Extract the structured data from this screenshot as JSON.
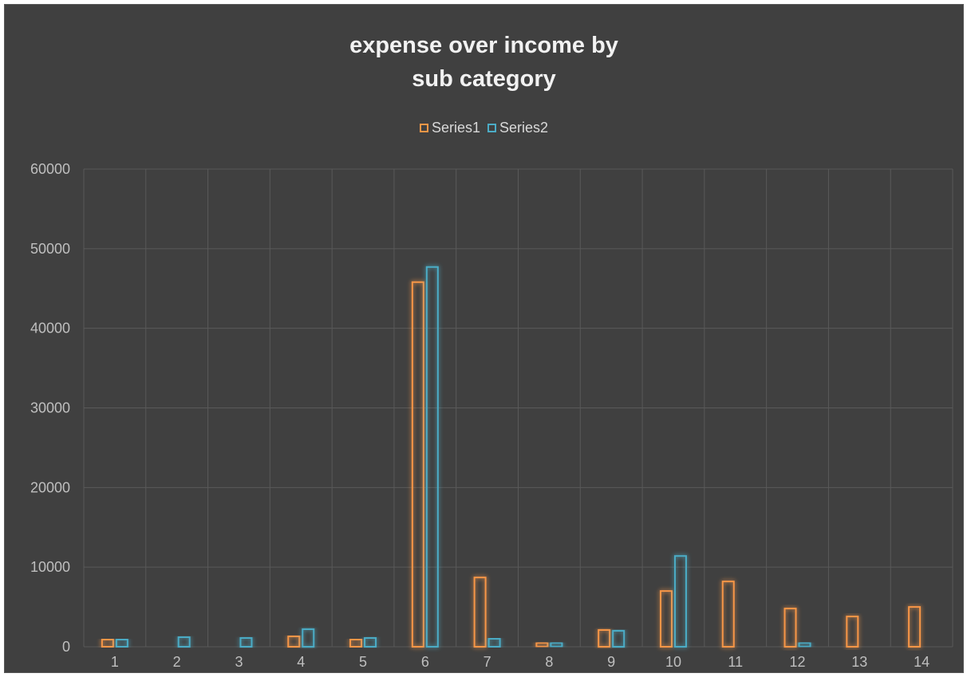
{
  "colors": {
    "background": "#404040",
    "gridline": "#595959",
    "series1": "#f79646",
    "series2": "#4bacc6",
    "text": "#d9d9d9"
  },
  "chart_data": {
    "type": "bar",
    "title_lines": [
      "expense over income by",
      "sub category"
    ],
    "xlabel": "",
    "ylabel": "",
    "categories": [
      "1",
      "2",
      "3",
      "4",
      "5",
      "6",
      "7",
      "8",
      "9",
      "10",
      "11",
      "12",
      "13",
      "14"
    ],
    "series": [
      {
        "name": "Series1",
        "color": "#f79646",
        "values": [
          900,
          0,
          0,
          1300,
          900,
          45800,
          8700,
          500,
          2100,
          7000,
          8200,
          4800,
          3800,
          5000
        ]
      },
      {
        "name": "Series2",
        "color": "#4bacc6",
        "values": [
          900,
          1200,
          1100,
          2200,
          1100,
          47700,
          1000,
          500,
          2000,
          11400,
          0,
          500,
          0,
          0
        ]
      }
    ],
    "ylim": [
      0,
      60000
    ],
    "yticks": [
      0,
      10000,
      20000,
      30000,
      40000,
      50000,
      60000
    ],
    "grid": true,
    "legend_position": "top"
  }
}
